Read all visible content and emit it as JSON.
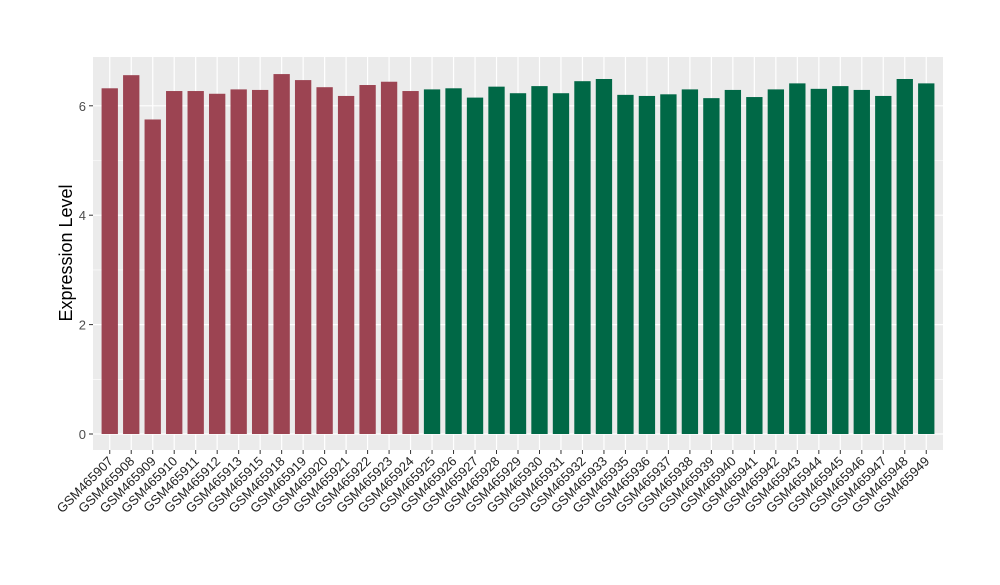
{
  "chart_data": {
    "type": "bar",
    "title": "",
    "xlabel": "",
    "ylabel": "Expression Level",
    "ylim": [
      -0.3,
      6.9
    ],
    "yticks": [
      0,
      2,
      4,
      6
    ],
    "grid": true,
    "legend": "none",
    "colors": {
      "panel_bg": "#EBEBEB",
      "grid": "#FFFFFF",
      "group_1": "#9C4452",
      "group_2": "#006846",
      "axis_text": "#4D4D4D"
    },
    "categories": [
      "GSM465907",
      "GSM465908",
      "GSM465909",
      "GSM465910",
      "GSM465911",
      "GSM465912",
      "GSM465913",
      "GSM465915",
      "GSM465918",
      "GSM465919",
      "GSM465920",
      "GSM465921",
      "GSM465922",
      "GSM465923",
      "GSM465924",
      "GSM465925",
      "GSM465926",
      "GSM465927",
      "GSM465928",
      "GSM465929",
      "GSM465930",
      "GSM465931",
      "GSM465932",
      "GSM465933",
      "GSM465935",
      "GSM465936",
      "GSM465937",
      "GSM465938",
      "GSM465939",
      "GSM465940",
      "GSM465941",
      "GSM465942",
      "GSM465943",
      "GSM465944",
      "GSM465945",
      "GSM465946",
      "GSM465947",
      "GSM465948",
      "GSM465949"
    ],
    "values": [
      6.32,
      6.56,
      5.75,
      6.27,
      6.27,
      6.22,
      6.3,
      6.29,
      6.58,
      6.47,
      6.34,
      6.18,
      6.38,
      6.44,
      6.27,
      6.3,
      6.32,
      6.15,
      6.35,
      6.23,
      6.36,
      6.23,
      6.45,
      6.49,
      6.2,
      6.18,
      6.21,
      6.3,
      6.14,
      6.29,
      6.16,
      6.3,
      6.41,
      6.31,
      6.36,
      6.29,
      6.18,
      6.49,
      6.41
    ],
    "groups": [
      1,
      1,
      1,
      1,
      1,
      1,
      1,
      1,
      1,
      1,
      1,
      1,
      1,
      1,
      1,
      2,
      2,
      2,
      2,
      2,
      2,
      2,
      2,
      2,
      2,
      2,
      2,
      2,
      2,
      2,
      2,
      2,
      2,
      2,
      2,
      2,
      2,
      2,
      2
    ]
  }
}
